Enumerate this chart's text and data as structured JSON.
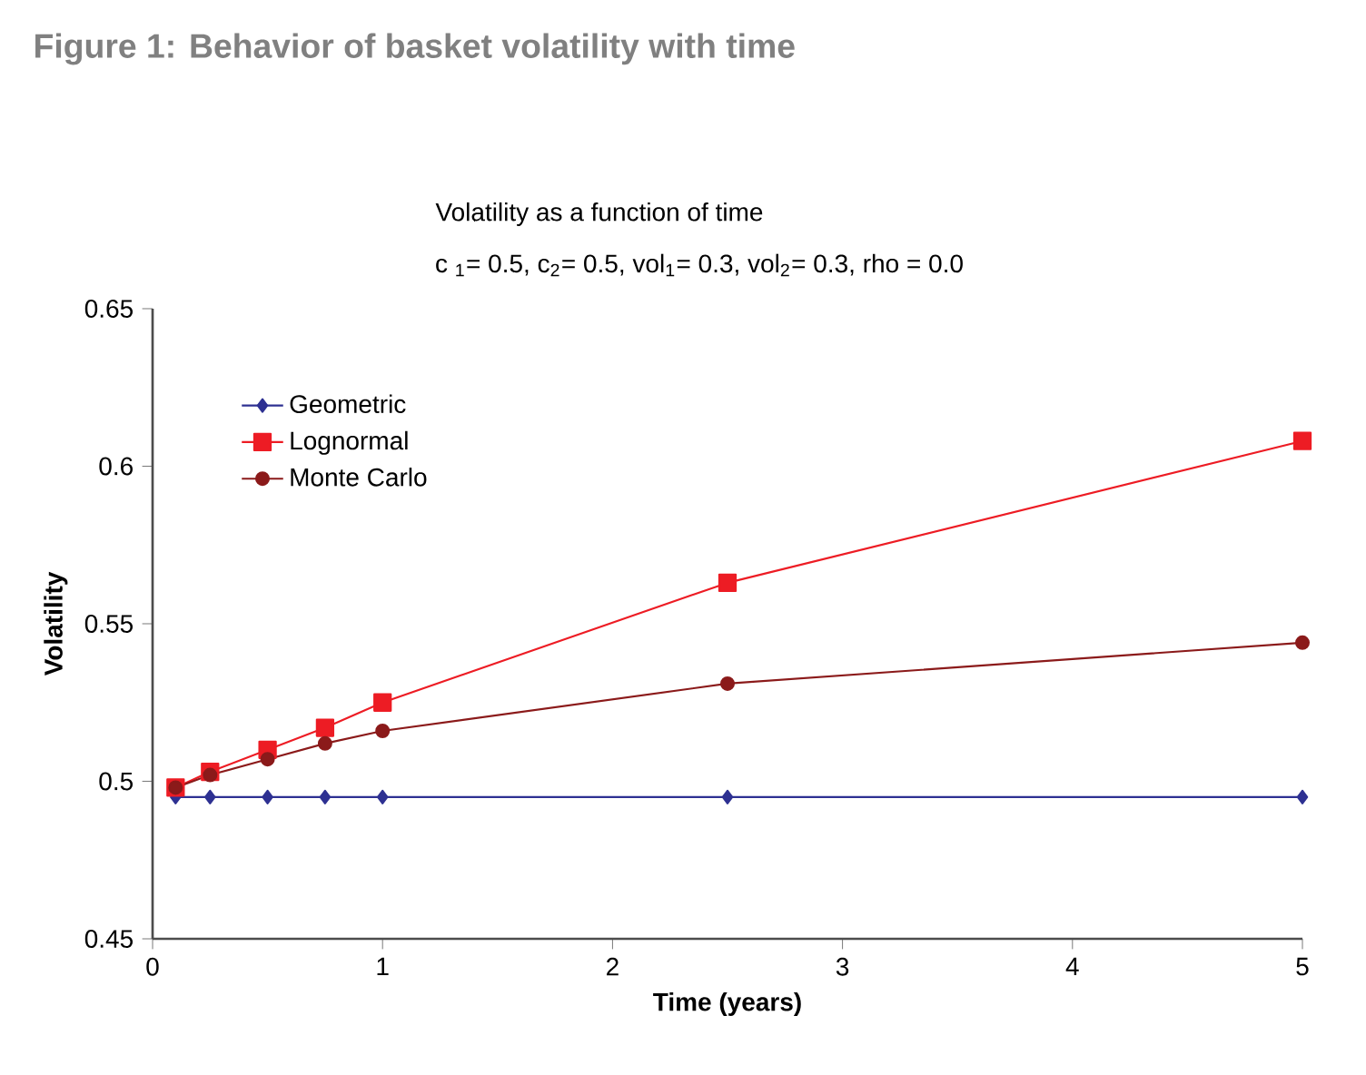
{
  "chart_data": {
    "type": "line",
    "title": "Figure 1: Behavior of basket volatility with time",
    "subtitle": "Volatility as a function of time",
    "annotations": [
      "c $_{1}$= 0.5, c$_{2}$= 0.5, vol$_{1}$= 0.3, vol$_{2}$= 0.3, rho = 0.0"
    ],
    "xlabel": "Time (years)",
    "ylabel": "Volatility",
    "x": [
      0.1,
      0.25,
      0.5,
      0.75,
      1,
      2.5,
      5
    ],
    "series": [
      {
        "name": "Geometric",
        "color": "#2e3192",
        "marker": "diamond",
        "values": [
          0.495,
          0.495,
          0.495,
          0.495,
          0.495,
          0.495,
          0.495
        ]
      },
      {
        "name": "Lognormal",
        "color": "#ed1c24",
        "marker": "square",
        "values": [
          0.498,
          0.503,
          0.51,
          0.517,
          0.525,
          0.563,
          0.608
        ]
      },
      {
        "name": "Monte Carlo",
        "color": "#8b1a1a",
        "marker": "circle",
        "values": [
          0.498,
          0.502,
          0.507,
          0.512,
          0.516,
          0.531,
          0.544
        ]
      }
    ],
    "xlim": [
      0,
      5
    ],
    "xticks": [
      0,
      1,
      2,
      3,
      4,
      5
    ],
    "ylim": [
      0.45,
      0.65
    ],
    "yticks": [
      0.45,
      0.5,
      0.55,
      0.6,
      0.65
    ],
    "grid": false,
    "legend": "top left",
    "line_style": "solid"
  }
}
